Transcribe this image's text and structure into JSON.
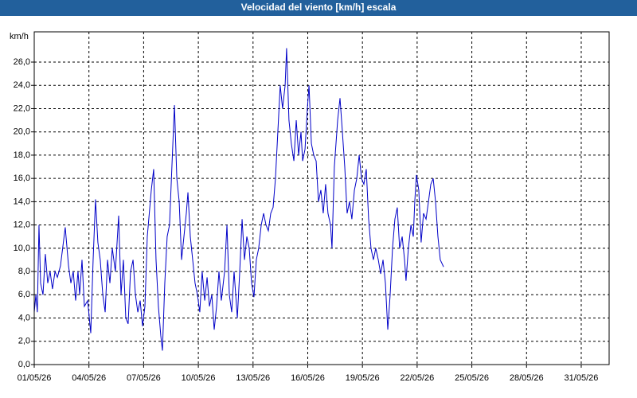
{
  "chart_data": {
    "type": "line",
    "title": "Velocidad del viento [km/h] escala",
    "y_label": "km/h",
    "color": "#0000c8",
    "grid": true,
    "xlim": [
      0,
      31.53
    ],
    "ylim": [
      0,
      28.6
    ],
    "xticks": [
      {
        "value": 0,
        "label": "01/05/26"
      },
      {
        "value": 3,
        "label": "04/05/26"
      },
      {
        "value": 6,
        "label": "07/05/26"
      },
      {
        "value": 9,
        "label": "10/05/26"
      },
      {
        "value": 12,
        "label": "13/05/26"
      },
      {
        "value": 15,
        "label": "16/05/26"
      },
      {
        "value": 18,
        "label": "19/05/26"
      },
      {
        "value": 21,
        "label": "22/05/26"
      },
      {
        "value": 24,
        "label": "25/05/26"
      },
      {
        "value": 27,
        "label": "28/05/26"
      },
      {
        "value": 30,
        "label": "31/05/26"
      }
    ],
    "yticks": [
      {
        "value": 0,
        "label": "0,0"
      },
      {
        "value": 2,
        "label": "2,0"
      },
      {
        "value": 4,
        "label": "4,0"
      },
      {
        "value": 6,
        "label": "6,0"
      },
      {
        "value": 8,
        "label": "8,0"
      },
      {
        "value": 10,
        "label": "10,0"
      },
      {
        "value": 12,
        "label": "12,0"
      },
      {
        "value": 14,
        "label": "14,0"
      },
      {
        "value": 16,
        "label": "16,0"
      },
      {
        "value": 18,
        "label": "18,0"
      },
      {
        "value": 20,
        "label": "20,0"
      },
      {
        "value": 22,
        "label": "22,0"
      },
      {
        "value": 24,
        "label": "24,0"
      },
      {
        "value": 26,
        "label": "26,0"
      }
    ],
    "x": [
      0,
      0.09,
      0.17,
      0.26,
      0.35,
      0.48,
      0.61,
      0.74,
      0.87,
      1.0,
      1.14,
      1.27,
      1.44,
      1.7,
      1.88,
      2.01,
      2.14,
      2.27,
      2.4,
      2.49,
      2.62,
      2.75,
      2.93,
      3.1,
      3.23,
      3.36,
      3.49,
      3.62,
      3.76,
      3.89,
      4.02,
      4.15,
      4.28,
      4.45,
      4.63,
      4.76,
      4.89,
      5.02,
      5.15,
      5.28,
      5.42,
      5.55,
      5.68,
      5.81,
      5.94,
      6.07,
      6.2,
      6.42,
      6.55,
      6.68,
      6.81,
      6.94,
      7.03,
      7.16,
      7.29,
      7.42,
      7.55,
      7.69,
      7.82,
      7.95,
      8.08,
      8.21,
      8.34,
      8.43,
      8.56,
      8.69,
      8.82,
      8.95,
      9.08,
      9.21,
      9.35,
      9.48,
      9.61,
      9.74,
      9.87,
      10.0,
      10.13,
      10.26,
      10.44,
      10.57,
      10.7,
      10.83,
      10.96,
      11.14,
      11.27,
      11.4,
      11.53,
      11.66,
      11.79,
      11.92,
      12.05,
      12.18,
      12.31,
      12.45,
      12.58,
      12.71,
      12.84,
      12.97,
      13.1,
      13.23,
      13.36,
      13.49,
      13.62,
      13.76,
      13.84,
      13.97,
      14.1,
      14.24,
      14.37,
      14.5,
      14.63,
      14.72,
      14.85,
      14.98,
      15.07,
      15.2,
      15.33,
      15.46,
      15.59,
      15.72,
      15.85,
      15.98,
      16.11,
      16.25,
      16.33,
      16.46,
      16.64,
      16.77,
      16.9,
      17.03,
      17.16,
      17.29,
      17.42,
      17.56,
      17.69,
      17.82,
      17.95,
      18.08,
      18.21,
      18.34,
      18.47,
      18.6,
      18.73,
      18.87,
      19.0,
      19.13,
      19.26,
      19.39,
      19.52,
      19.65,
      19.78,
      19.91,
      20.04,
      20.18,
      20.31,
      20.39,
      20.52,
      20.66,
      20.79,
      20.87,
      20.96,
      21.09,
      21.22,
      21.35,
      21.49,
      21.62,
      21.75,
      21.88,
      22.01,
      22.14,
      22.27,
      22.45
    ],
    "values": [
      4.5,
      6,
      4.5,
      12,
      7,
      6,
      9.5,
      7,
      8,
      6.5,
      8,
      7.5,
      8.5,
      11.8,
      8.5,
      7,
      8,
      5.5,
      8,
      6,
      9,
      5,
      5.5,
      2.7,
      9,
      14.2,
      10.5,
      9,
      6,
      4.5,
      9,
      7,
      10,
      8,
      12.8,
      6,
      9,
      4,
      3.5,
      8,
      9,
      6,
      4.5,
      5.5,
      3.3,
      5,
      11,
      15,
      16.8,
      9,
      5,
      2.5,
      1.2,
      7,
      11,
      12,
      17,
      22.3,
      16,
      14,
      9,
      11,
      13,
      14.8,
      11,
      9,
      7,
      6,
      4.5,
      8,
      5.5,
      7.5,
      5,
      6,
      3,
      5,
      8,
      5.5,
      8,
      12,
      6,
      4.5,
      8,
      4,
      8,
      12.5,
      9,
      11,
      10,
      7,
      5.8,
      9,
      10,
      12,
      13,
      12,
      11.5,
      13,
      13.5,
      16,
      20,
      24,
      22,
      24,
      27.2,
      21,
      19,
      17.5,
      21,
      18,
      20,
      17.5,
      18.5,
      22,
      24,
      19,
      18,
      17.5,
      14,
      15,
      13,
      15.5,
      13,
      12,
      10,
      17,
      21,
      22.9,
      20,
      17,
      13,
      14,
      12.5,
      15,
      16,
      18,
      16,
      15.5,
      16.8,
      12.5,
      10,
      9,
      10,
      9,
      7.8,
      9,
      7,
      3,
      6,
      10,
      12.5,
      13.5,
      10,
      11,
      9,
      7.2,
      10,
      12,
      11,
      14,
      16.3,
      15,
      10.5,
      13,
      12.5,
      14,
      15.5,
      16,
      14,
      11,
      9,
      8.4
    ]
  }
}
